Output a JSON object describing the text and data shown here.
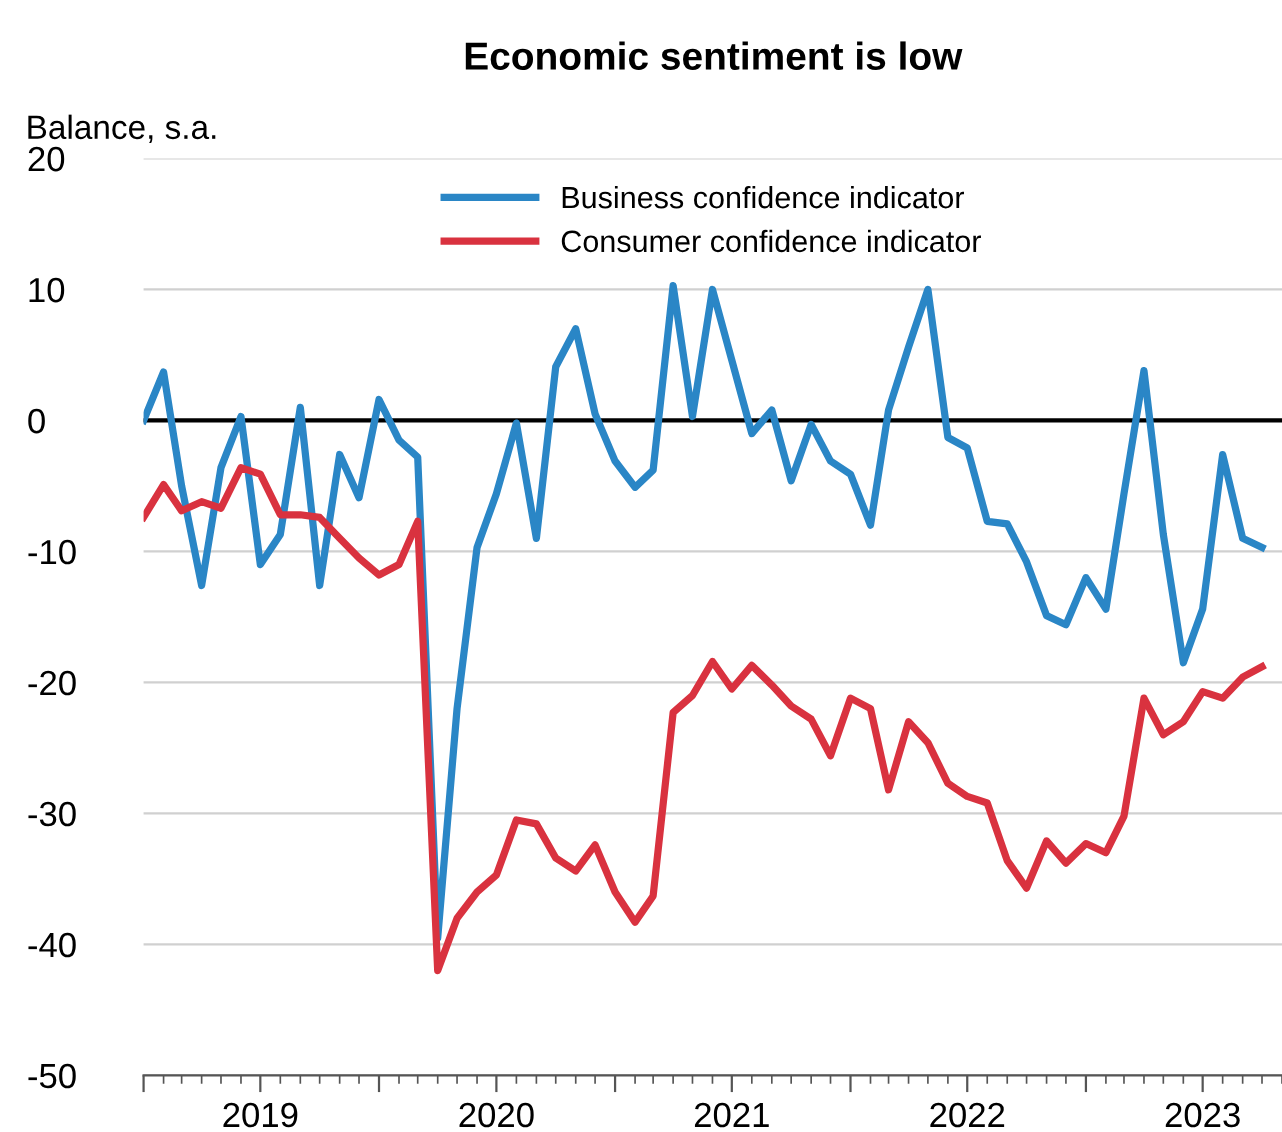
{
  "chart_data": {
    "type": "line",
    "title": "Economic sentiment is low",
    "ylabel": "Balance, s.a.",
    "x": [
      "2019-01",
      "2019-02",
      "2019-03",
      "2019-04",
      "2019-05",
      "2019-06",
      "2019-07",
      "2019-08",
      "2019-09",
      "2019-10",
      "2019-11",
      "2019-12",
      "2020-01",
      "2020-02",
      "2020-03",
      "2020-04",
      "2020-05",
      "2020-06",
      "2020-07",
      "2020-08",
      "2020-09",
      "2020-10",
      "2020-11",
      "2020-12",
      "2021-01",
      "2021-02",
      "2021-03",
      "2021-04",
      "2021-05",
      "2021-06",
      "2021-07",
      "2021-08",
      "2021-09",
      "2021-10",
      "2021-11",
      "2021-12",
      "2022-01",
      "2022-02",
      "2022-03",
      "2022-04",
      "2022-05",
      "2022-06",
      "2022-07",
      "2022-08",
      "2022-09",
      "2022-10",
      "2022-11",
      "2022-12",
      "2023-01",
      "2023-02",
      "2023-03",
      "2023-04",
      "2023-05",
      "2023-06",
      "2023-07",
      "2023-08",
      "2023-09",
      "2023-10"
    ],
    "series": [
      {
        "name": "Business confidence indicator",
        "color": "#2a86c6",
        "values": [
          0,
          3.7,
          -5,
          -12.6,
          -3.6,
          0.3,
          -11,
          -8.7,
          1,
          -12.6,
          -2.6,
          -5.9,
          1.6,
          -1.5,
          -2.8,
          -39.5,
          -22,
          -9.7,
          -5.6,
          -0.2,
          -9,
          4.1,
          7,
          0.5,
          -3.1,
          -5.1,
          -3.8,
          10.3,
          0.3,
          10,
          4.6,
          -1,
          0.8,
          -4.6,
          -0.3,
          -3.1,
          -4.1,
          -8,
          0.8,
          5.6,
          10,
          -1.3,
          -2.1,
          -7.7,
          -7.9,
          -10.8,
          -14.9,
          -15.6,
          -12,
          -14.4,
          -5.6,
          3.8,
          -8.7,
          -18.5,
          -14.4,
          -2.6,
          -9,
          -9.7
        ]
      },
      {
        "name": "Consumer confidence indicator",
        "color": "#d9323f",
        "values": [
          -7.4,
          -4.9,
          -6.9,
          -6.2,
          -6.7,
          -3.6,
          -4.1,
          -7.2,
          -7.2,
          -7.4,
          -9,
          -10.5,
          -11.8,
          -11,
          -7.7,
          -42,
          -38,
          -36,
          -34.7,
          -30.5,
          -30.8,
          -33.4,
          -34.4,
          -32.4,
          -36,
          -38.3,
          -36.3,
          -22.3,
          -21,
          -18.4,
          -20.5,
          -18.7,
          -20.2,
          -21.8,
          -22.8,
          -25.6,
          -21.2,
          -22,
          -28.2,
          -23,
          -24.6,
          -27.7,
          -28.7,
          -29.2,
          -33.6,
          -35.7,
          -32.1,
          -33.8,
          -32.3,
          -33,
          -30.2,
          -21.2,
          -24,
          -23,
          -20.7,
          -21.2,
          -19.6,
          -18.8
        ]
      }
    ],
    "xlim": [
      "2019-01-01",
      "2023-11-01"
    ],
    "xticks": [
      {
        "value": "2019-01-01",
        "label": null
      },
      {
        "value": "2019-07-01",
        "label": "2019"
      },
      {
        "value": "2020-01-01",
        "label": null
      },
      {
        "value": "2020-07-01",
        "label": "2020"
      },
      {
        "value": "2021-01-01",
        "label": null
      },
      {
        "value": "2021-07-01",
        "label": "2021"
      },
      {
        "value": "2022-01-01",
        "label": null
      },
      {
        "value": "2022-07-01",
        "label": "2022"
      },
      {
        "value": "2023-01-01",
        "label": null
      },
      {
        "value": "2023-07-01",
        "label": "2023"
      }
    ],
    "ylim": [
      -50,
      20
    ],
    "yticks": [
      -50,
      -40,
      -30,
      -20,
      -10,
      0,
      10,
      20
    ],
    "ref_lines": [
      {
        "axis": "y",
        "value": 0,
        "color": "#000000"
      }
    ],
    "grid": "y",
    "legend": "top"
  }
}
